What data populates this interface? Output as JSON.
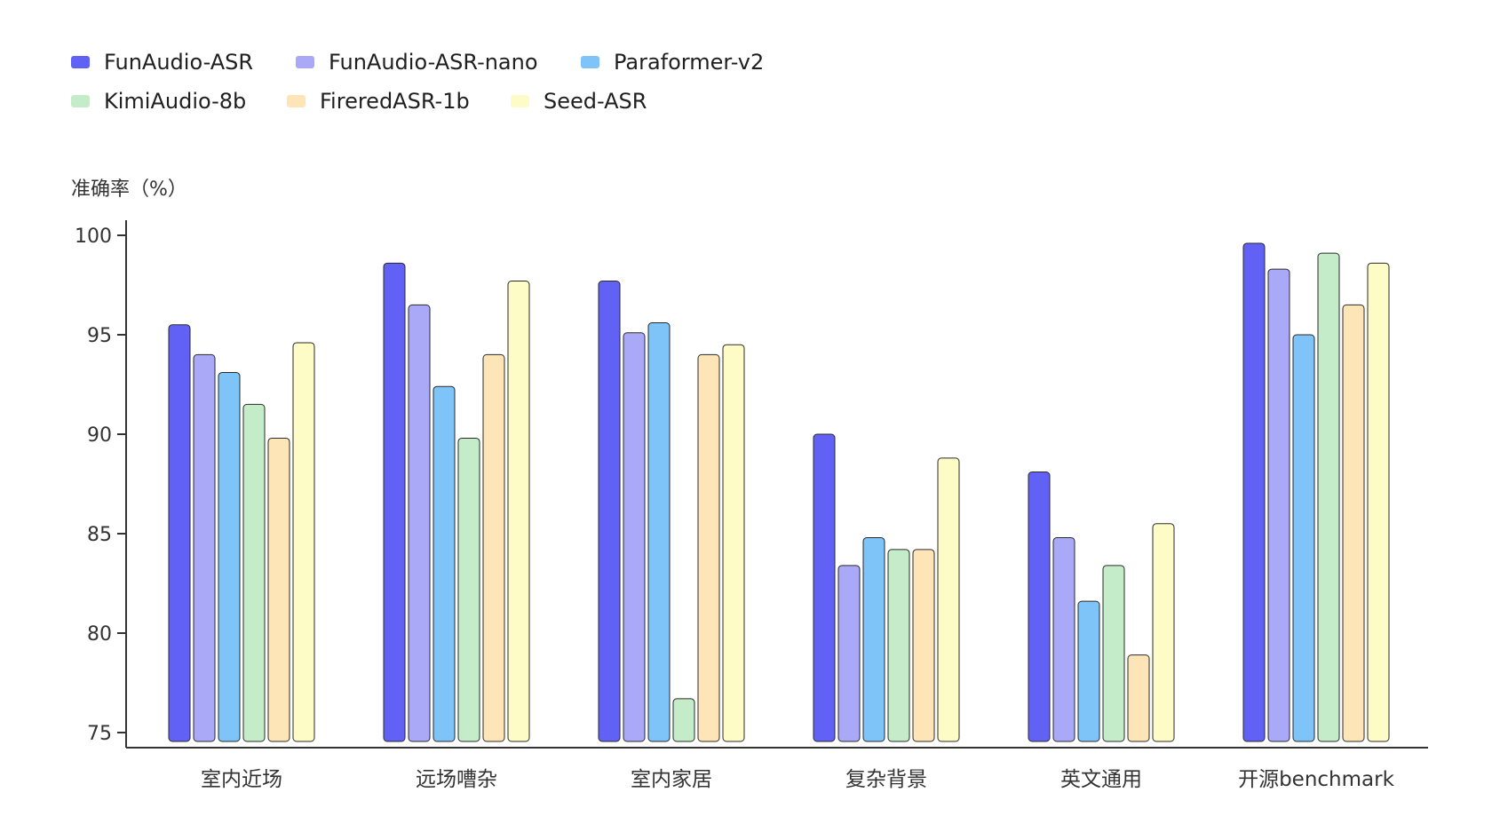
{
  "chart_data": {
    "type": "bar",
    "ylabel": "准确率（%）",
    "ylim": [
      75,
      100
    ],
    "yticks": [
      75,
      80,
      85,
      90,
      95,
      100
    ],
    "categories": [
      "室内近场",
      "远场嘈杂",
      "室内家居",
      "复杂背景",
      "英文通用",
      "开源benchmark"
    ],
    "legend_position": "top-left",
    "grid": false,
    "series": [
      {
        "name": "FunAudio-ASR",
        "color": "#6161f5",
        "values": [
          95.5,
          98.6,
          97.7,
          90.0,
          88.1,
          99.6
        ]
      },
      {
        "name": "FunAudio-ASR-nano",
        "color": "#a9a9f7",
        "values": [
          94.0,
          96.5,
          95.1,
          83.4,
          84.8,
          98.3
        ]
      },
      {
        "name": "Paraformer-v2",
        "color": "#7ec4f8",
        "values": [
          93.1,
          92.4,
          95.6,
          84.8,
          81.6,
          95.0
        ]
      },
      {
        "name": "KimiAudio-8b",
        "color": "#c4ecc8",
        "values": [
          91.5,
          89.8,
          76.7,
          84.2,
          83.4,
          99.1
        ]
      },
      {
        "name": "FireredASR-1b",
        "color": "#fde5b8",
        "values": [
          89.8,
          94.0,
          94.0,
          84.2,
          78.9,
          96.5
        ]
      },
      {
        "name": "Seed-ASR",
        "color": "#fdfcc6",
        "values": [
          94.6,
          97.7,
          94.5,
          88.8,
          85.5,
          98.6
        ]
      }
    ]
  }
}
